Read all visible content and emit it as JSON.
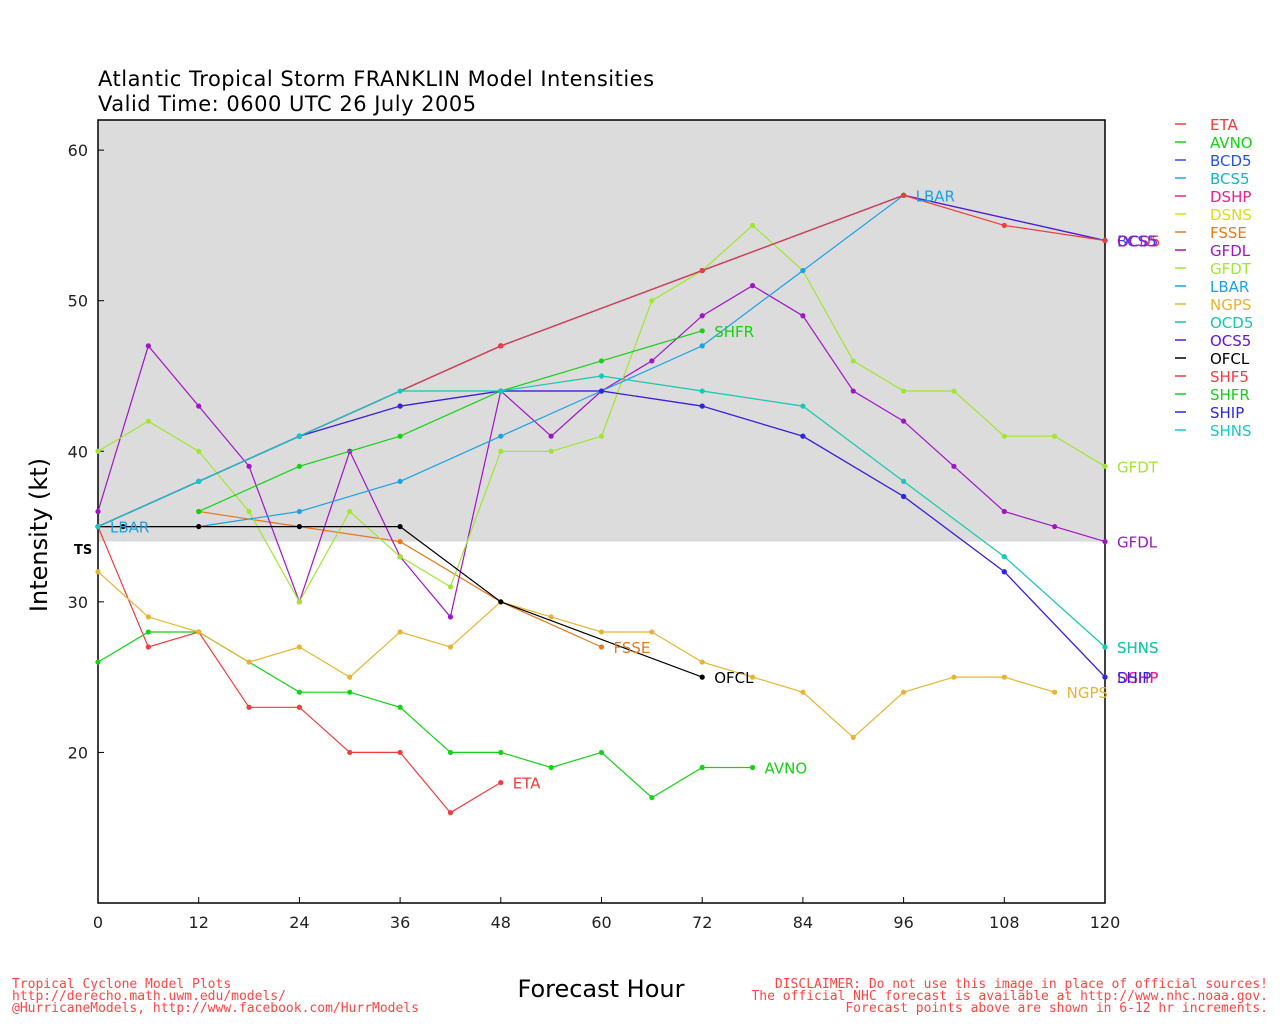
{
  "chart_data": {
    "type": "line",
    "title": "Atlantic Tropical Storm FRANKLIN Model Intensities",
    "subtitle": "Valid Time: 0600 UTC 26 July 2005",
    "xlabel": "Forecast Hour",
    "ylabel": "Intensity (kt)",
    "xlim": [
      0,
      120
    ],
    "ylim": [
      10,
      62
    ],
    "xticks": [
      0,
      12,
      24,
      36,
      48,
      60,
      72,
      84,
      96,
      108,
      120
    ],
    "yticks": [
      20,
      30,
      40,
      50,
      60
    ],
    "ts_threshold": 34,
    "ts_label": "TS",
    "legend_position": "right",
    "series": [
      {
        "name": "ETA",
        "color": "#f03c3c",
        "label_text": "ETA",
        "show_end_label": true,
        "x": [
          0,
          6,
          12,
          18,
          24,
          30,
          36,
          42,
          48
        ],
        "y": [
          35,
          27,
          28,
          23,
          23,
          20,
          20,
          16,
          18
        ]
      },
      {
        "name": "AVNO",
        "color": "#14d214",
        "label_text": "AVNO",
        "show_end_label": true,
        "x": [
          0,
          6,
          12,
          18,
          24,
          30,
          36,
          42,
          48,
          54,
          60,
          66,
          72,
          78
        ],
        "y": [
          26,
          28,
          28,
          26,
          24,
          24,
          23,
          20,
          20,
          19,
          20,
          17,
          19,
          19
        ]
      },
      {
        "name": "BCD5",
        "color": "#2850e6",
        "label_text": "BCD5",
        "show_end_label": false,
        "x": [
          0,
          24,
          48,
          72,
          96,
          120
        ],
        "y": [
          35,
          41,
          47,
          52,
          57,
          54
        ]
      },
      {
        "name": "BCS5",
        "color": "#14b4c8",
        "label_text": "BCS5",
        "show_end_label": false,
        "x": [
          0,
          24,
          48,
          72,
          96,
          120
        ],
        "y": [
          35,
          41,
          47,
          52,
          57,
          54
        ]
      },
      {
        "name": "DSHP",
        "color": "#f01e8c",
        "label_text": "DSHP",
        "show_end_label": true,
        "x": [
          0,
          12,
          24,
          36,
          48,
          60,
          72,
          84,
          96,
          108,
          120
        ],
        "y": [
          35,
          38,
          41,
          43,
          44,
          44,
          43,
          41,
          37,
          32,
          25
        ]
      },
      {
        "name": "DSNS",
        "color": "#dcdc14",
        "label_text": "DSNS",
        "show_end_label": false,
        "x": [
          0,
          12,
          24,
          36,
          48,
          60,
          72,
          84,
          96,
          108,
          120
        ],
        "y": [
          35,
          38,
          41,
          44,
          44,
          45,
          44,
          43,
          38,
          33,
          27
        ]
      },
      {
        "name": "FSSE",
        "color": "#e6781e",
        "label_text": "FSSE",
        "show_end_label": true,
        "x": [
          12,
          24,
          36,
          48,
          60
        ],
        "y": [
          36,
          35,
          34,
          30,
          27
        ]
      },
      {
        "name": "GFDL",
        "color": "#a014c8",
        "label_text": "GFDL",
        "show_end_label": true,
        "x": [
          0,
          6,
          12,
          18,
          24,
          30,
          36,
          42,
          48,
          54,
          60,
          66,
          72,
          78,
          84,
          90,
          96,
          102,
          108,
          114,
          120
        ],
        "y": [
          36,
          47,
          43,
          39,
          30,
          40,
          33,
          29,
          44,
          41,
          44,
          46,
          49,
          51,
          49,
          44,
          42,
          39,
          36,
          35,
          34
        ]
      },
      {
        "name": "GFDT",
        "color": "#a0e632",
        "label_text": "GFDT",
        "show_end_label": true,
        "x": [
          0,
          6,
          12,
          18,
          24,
          30,
          36,
          42,
          48,
          54,
          60,
          66,
          72,
          78,
          84,
          90,
          96,
          102,
          108,
          114,
          120
        ],
        "y": [
          40,
          42,
          40,
          36,
          30,
          36,
          33,
          31,
          40,
          40,
          41,
          50,
          52,
          55,
          52,
          46,
          44,
          44,
          41,
          41,
          39
        ]
      },
      {
        "name": "LBAR",
        "color": "#1ea0e6",
        "label_text": "LBAR",
        "show_end_label": true,
        "x": [
          0,
          12,
          24,
          36,
          48,
          60,
          72,
          84,
          96
        ],
        "y": [
          35,
          35,
          36,
          38,
          41,
          44,
          47,
          52,
          57
        ]
      },
      {
        "name": "NGPS",
        "color": "#e6b432",
        "label_text": "NGPS",
        "show_end_label": true,
        "x": [
          0,
          6,
          12,
          18,
          24,
          30,
          36,
          42,
          48,
          54,
          60,
          66,
          72,
          78,
          84,
          90,
          96,
          102,
          108,
          114
        ],
        "y": [
          32,
          29,
          28,
          26,
          27,
          25,
          28,
          27,
          30,
          29,
          28,
          28,
          26,
          25,
          24,
          21,
          24,
          25,
          25,
          24
        ]
      },
      {
        "name": "OCD5",
        "color": "#14c8a0",
        "label_text": "OCD5",
        "show_end_label": false,
        "x": [
          0,
          24,
          48,
          72,
          96,
          120
        ],
        "y": [
          35,
          41,
          47,
          52,
          57,
          54
        ]
      },
      {
        "name": "OCS5",
        "color": "#6414dc",
        "label_text": "OCS5",
        "show_end_label": false,
        "x": [
          0,
          24,
          48,
          72,
          96,
          120
        ],
        "y": [
          35,
          41,
          47,
          52,
          57,
          54
        ]
      },
      {
        "name": "OFCL",
        "color": "#000000",
        "label_text": "OFCL",
        "show_end_label": true,
        "x": [
          0,
          3,
          12,
          24,
          36,
          48,
          72
        ],
        "y": [
          35,
          35,
          35,
          35,
          35,
          30,
          25
        ]
      },
      {
        "name": "SHF5",
        "color": "#f03c3c",
        "label_text": "SHF5",
        "show_end_label": false,
        "x": [
          0,
          24,
          48,
          72,
          96,
          108,
          120
        ],
        "y": [
          35,
          41,
          47,
          52,
          57,
          55,
          54
        ]
      },
      {
        "name": "SHFR",
        "color": "#14d214",
        "label_text": "SHFR",
        "show_end_label": true,
        "x": [
          12,
          24,
          36,
          48,
          60,
          72
        ],
        "y": [
          36,
          39,
          41,
          44,
          46,
          48
        ]
      },
      {
        "name": "SHIP",
        "color": "#2828e6",
        "label_text": "SHIP",
        "show_end_label": false,
        "x": [
          0,
          12,
          24,
          36,
          48,
          60,
          72,
          84,
          96,
          108,
          120
        ],
        "y": [
          35,
          38,
          41,
          43,
          44,
          44,
          43,
          41,
          37,
          32,
          25
        ]
      },
      {
        "name": "SHNS",
        "color": "#14c8c8",
        "label_text": "SHNS",
        "show_end_label": true,
        "x": [
          0,
          12,
          24,
          36,
          48,
          60,
          72,
          84,
          96,
          108,
          120
        ],
        "y": [
          35,
          38,
          41,
          44,
          44,
          45,
          44,
          43,
          38,
          33,
          27
        ]
      }
    ],
    "end_labels_extra": [
      {
        "text": "DSHP",
        "color": "#f01e8c",
        "x": 120,
        "y": 25
      },
      {
        "text": "SHIP",
        "color": "#2828e6",
        "x": 120,
        "y": 25
      },
      {
        "text": "OCD5",
        "color": "#f03c3c",
        "x": 120,
        "y": 54
      },
      {
        "text": "BCS5",
        "color": "#2850e6",
        "x": 120,
        "y": 54
      },
      {
        "text": "OCS5",
        "color": "#a014c8",
        "x": 120,
        "y": 54
      },
      {
        "text": "SHNS",
        "color": "#14c8a0",
        "x": 120,
        "y": 27
      }
    ]
  },
  "footer": {
    "left_lines": [
      "Tropical Cyclone Model Plots",
      "http://derecho.math.uwm.edu/models/",
      "@HurricaneModels, http://www.facebook.com/HurrModels"
    ],
    "right_lines": [
      "DISCLAIMER: Do not use this image in place of official sources!",
      "The official NHC forecast is available at http://www.nhc.noaa.gov.",
      "Forecast points above are shown in 6-12 hr increments."
    ]
  }
}
